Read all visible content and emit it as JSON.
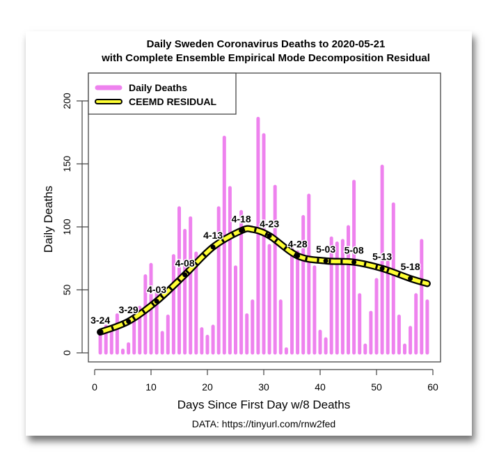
{
  "chart_data": {
    "type": "bar",
    "title": "Daily Sweden Coronavirus Deaths to 2020-05-21",
    "subtitle": "with Complete Ensemble Empirical Mode Decomposition Residual",
    "xlabel": "Days Since First Day w/8 Deaths",
    "ylabel": "Daily Deaths",
    "source": "DATA: https://tinyurl.com/rnw2fed",
    "xlim": [
      0,
      60
    ],
    "ylim": [
      0,
      200
    ],
    "xticks": [
      0,
      10,
      20,
      30,
      40,
      50,
      60
    ],
    "yticks": [
      0,
      50,
      100,
      150,
      200
    ],
    "grid": false,
    "legend_position": "top-left",
    "legend": [
      {
        "label": "Daily Deaths",
        "color": "#ee82ee"
      },
      {
        "label": "CEEMD RESIDUAL",
        "color": "#ffff33"
      }
    ],
    "series": [
      {
        "name": "Daily Deaths",
        "type": "bar",
        "color": "#ee82ee",
        "x": [
          1,
          2,
          3,
          4,
          5,
          6,
          7,
          8,
          9,
          10,
          11,
          12,
          13,
          14,
          15,
          16,
          17,
          18,
          19,
          20,
          21,
          22,
          23,
          24,
          25,
          26,
          27,
          28,
          29,
          30,
          31,
          32,
          33,
          34,
          35,
          36,
          37,
          38,
          39,
          40,
          41,
          42,
          43,
          44,
          45,
          46,
          47,
          48,
          49,
          50,
          51,
          52,
          53,
          54,
          55,
          56,
          57,
          58,
          59
        ],
        "values": [
          15,
          21,
          17,
          30,
          2,
          7,
          30,
          36,
          61,
          70,
          50,
          16,
          29,
          77,
          115,
          97,
          107,
          79,
          19,
          13,
          21,
          115,
          171,
          131,
          68,
          112,
          30,
          41,
          186,
          173,
          85,
          132,
          41,
          3,
          84,
          80,
          108,
          125,
          68,
          17,
          11,
          91,
          87,
          89,
          100,
          136,
          46,
          6,
          32,
          58,
          148,
          72,
          118,
          29,
          6,
          20,
          46,
          89,
          41
        ]
      },
      {
        "name": "CEEMD RESIDUAL",
        "type": "line",
        "color": "#ffff33",
        "x": [
          1,
          6,
          11,
          16,
          21,
          26,
          28,
          31,
          36,
          41,
          46,
          51,
          56,
          59
        ],
        "values": [
          16.5,
          25,
          41,
          62,
          84,
          97,
          98,
          93,
          77,
          73,
          72,
          67,
          59,
          55
        ],
        "markers": [
          {
            "x": 1,
            "label": "3-24"
          },
          {
            "x": 6,
            "label": "3-29"
          },
          {
            "x": 11,
            "label": "4-03"
          },
          {
            "x": 16,
            "label": "4-08"
          },
          {
            "x": 21,
            "label": "4-13"
          },
          {
            "x": 26,
            "label": "4-18"
          },
          {
            "x": 31,
            "label": "4-23"
          },
          {
            "x": 36,
            "label": "4-28"
          },
          {
            "x": 41,
            "label": "5-03"
          },
          {
            "x": 46,
            "label": "5-08"
          },
          {
            "x": 51,
            "label": "5-13"
          },
          {
            "x": 56,
            "label": "5-18"
          }
        ]
      }
    ]
  }
}
